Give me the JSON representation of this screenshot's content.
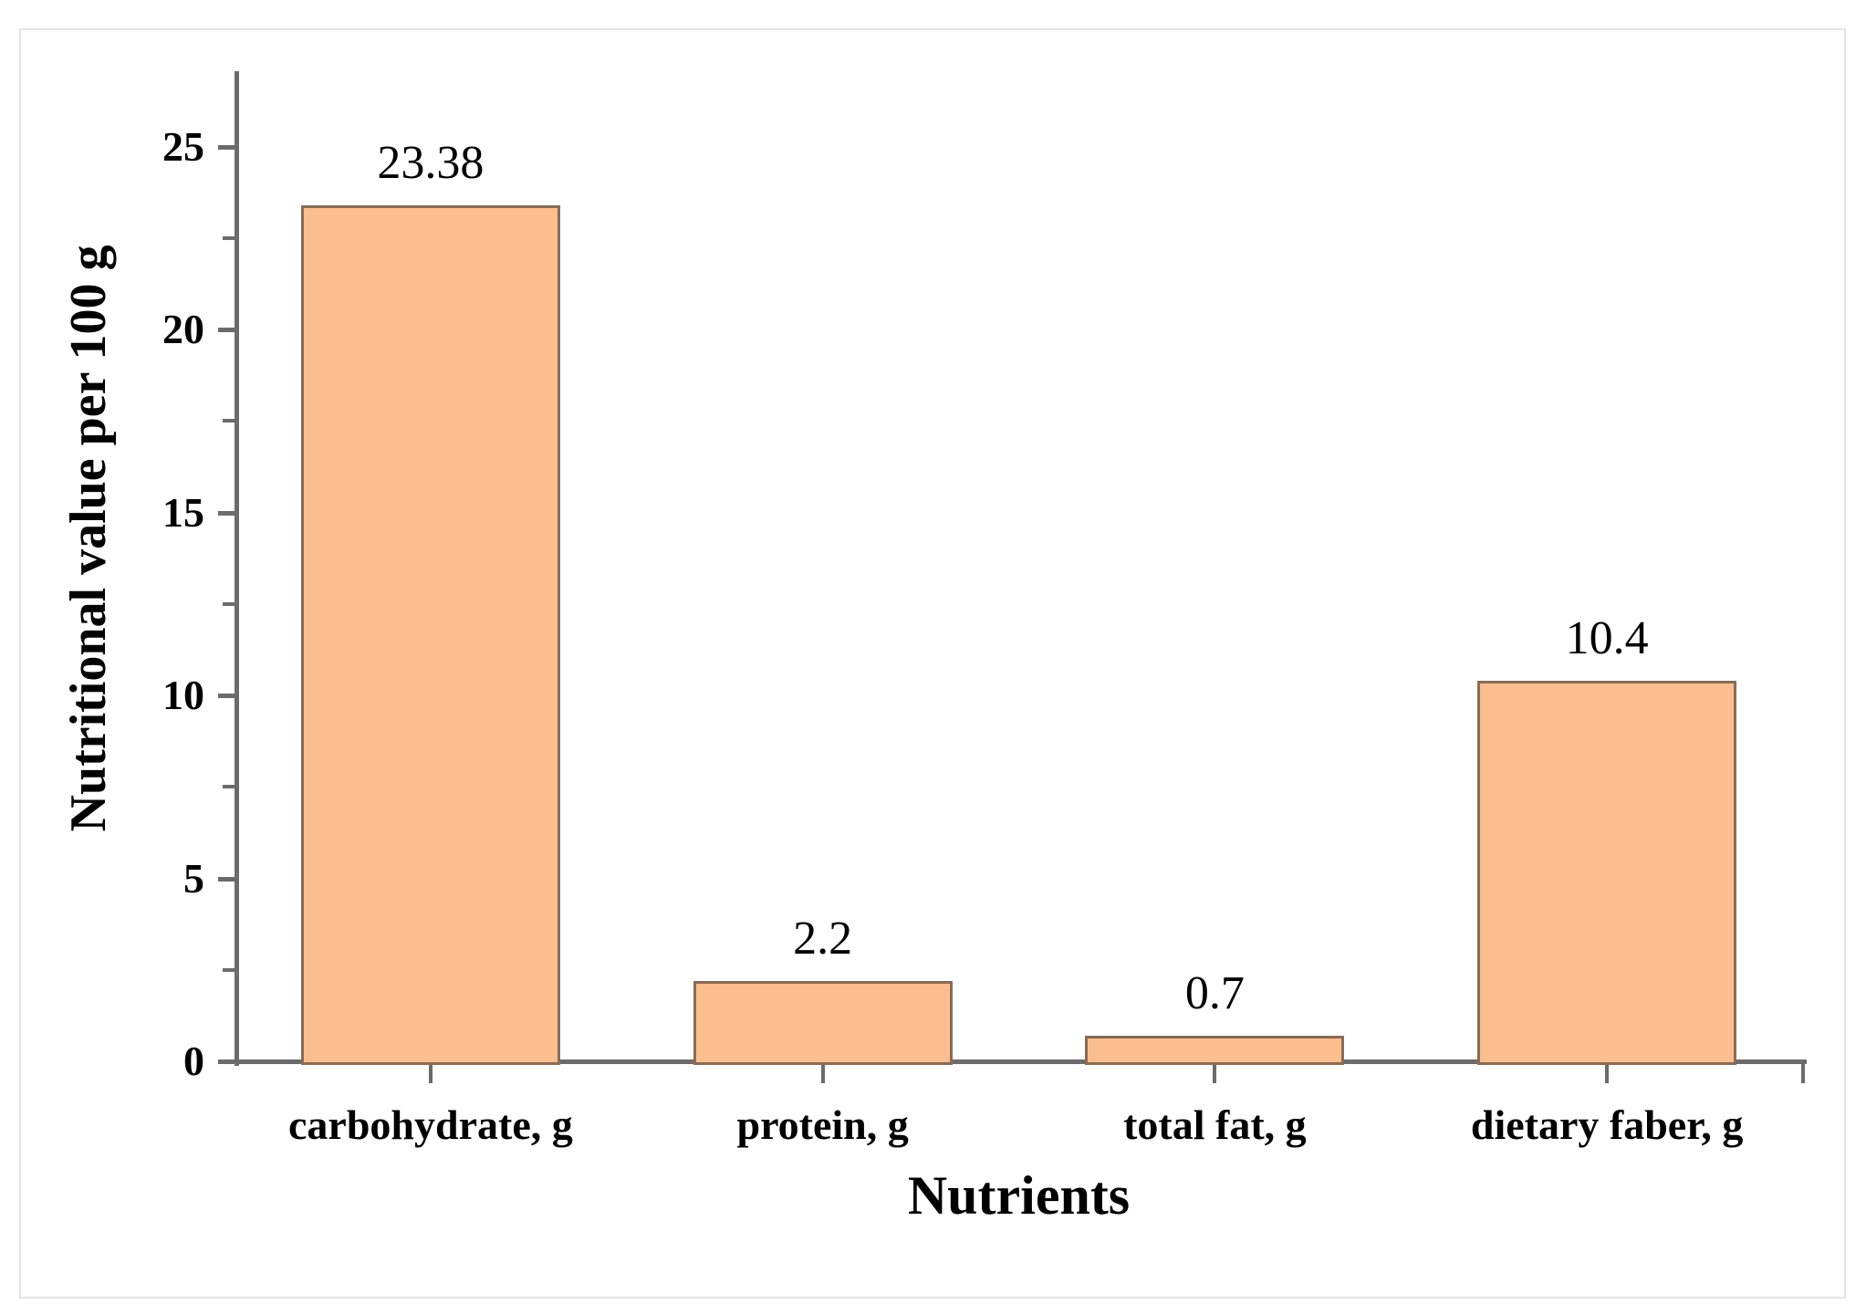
{
  "figure": {
    "background": "#ffffff",
    "frame_color": "#e4e4e4"
  },
  "chart_data": {
    "type": "bar",
    "title": "",
    "categories": [
      "carbohydrate, g",
      "protein, g",
      "total fat, g",
      "dietary faber, g"
    ],
    "values": [
      23.38,
      2.2,
      0.7,
      10.4
    ],
    "data_labels": [
      "23.38",
      "2.2",
      "0.7",
      "10.4"
    ],
    "xlabel": "Nutrients",
    "ylabel": "Nutritional value per 100 g",
    "ylim": [
      0,
      27
    ],
    "y_major_ticks": [
      0,
      5,
      10,
      15,
      20,
      25
    ],
    "y_minor_ticks": [
      2.5,
      7.5,
      12.5,
      17.5,
      22.5
    ],
    "grid": false,
    "legend": false,
    "bar_fill": "#FBBE8E",
    "bar_border": "#8A6B55",
    "axis_color": "#6b6b6b",
    "text_color": "#000000"
  }
}
